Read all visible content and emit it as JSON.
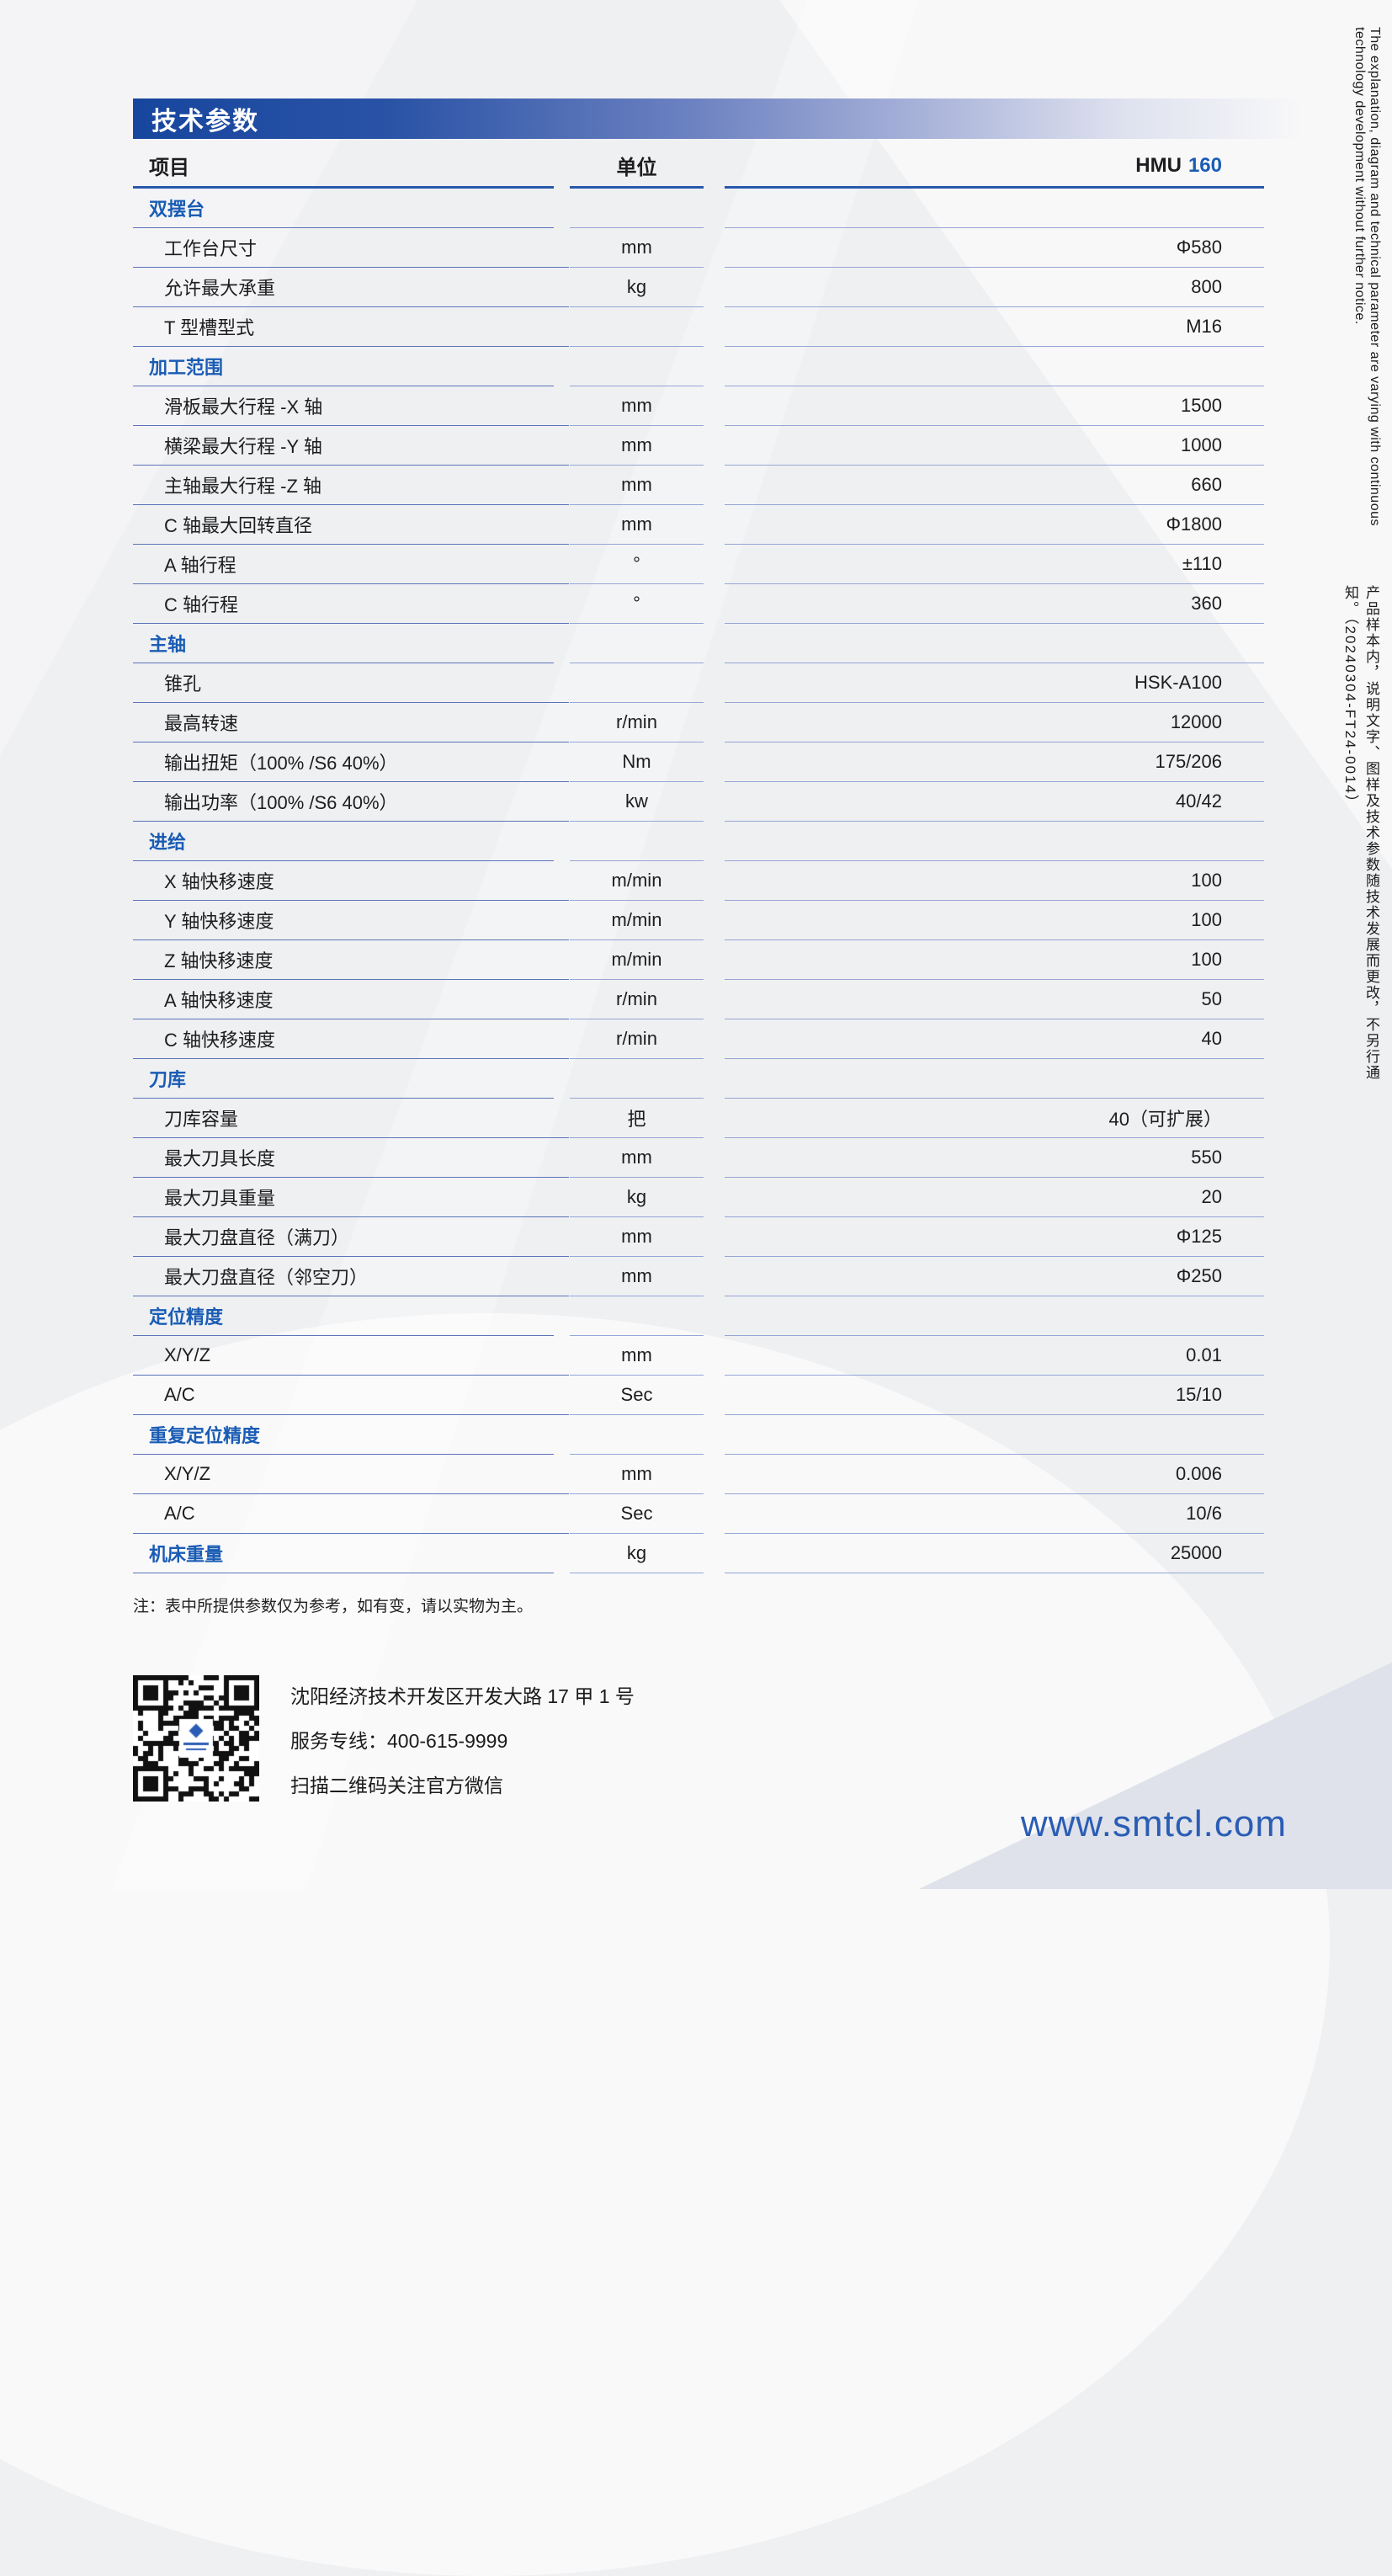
{
  "page": {
    "banner_title": "技术参数",
    "note": "注：表中所提供参数仅为参考，如有变，请以实物为主。",
    "website": "www.smtcl.com",
    "side_text_en": "The explanation, diagram and technical parameter are varying with continuous technology development without further notice.",
    "side_text_zh": "产品样本内，说明文字、图样及技术参数随技术发展而更改，不另行通知。（20240304-FT24-0014）"
  },
  "colors": {
    "banner_blue": "#17469e",
    "section_blue": "#1a5cb4",
    "line_dark": "#2759ab",
    "line_item": "#5a74b8",
    "line_light": "#95a5d6",
    "website_blue": "#2a5db5"
  },
  "table": {
    "header": {
      "item": "项目",
      "unit": "单位",
      "model_prefix": "HMU",
      "model_number": "160"
    },
    "rows": [
      {
        "type": "section",
        "item": "双摆台",
        "unit": "",
        "value": ""
      },
      {
        "type": "item",
        "item": "工作台尺寸",
        "unit": "mm",
        "value": "Φ580"
      },
      {
        "type": "item",
        "item": "允许最大承重",
        "unit": "kg",
        "value": "800"
      },
      {
        "type": "item",
        "item": "T 型槽型式",
        "unit": "",
        "value": "M16"
      },
      {
        "type": "section",
        "item": "加工范围",
        "unit": "",
        "value": ""
      },
      {
        "type": "item",
        "item": "滑板最大行程 -X 轴",
        "unit": "mm",
        "value": "1500"
      },
      {
        "type": "item",
        "item": "横梁最大行程 -Y 轴",
        "unit": "mm",
        "value": "1000"
      },
      {
        "type": "item",
        "item": "主轴最大行程 -Z 轴",
        "unit": "mm",
        "value": "660"
      },
      {
        "type": "item",
        "item": "C 轴最大回转直径",
        "unit": "mm",
        "value": "Φ1800"
      },
      {
        "type": "item",
        "item": "A 轴行程",
        "unit": "°",
        "value": "±110"
      },
      {
        "type": "item",
        "item": "C 轴行程",
        "unit": "°",
        "value": "360"
      },
      {
        "type": "section",
        "item": "主轴",
        "unit": "",
        "value": ""
      },
      {
        "type": "item",
        "item": "锥孔",
        "unit": "",
        "value": "HSK-A100"
      },
      {
        "type": "item",
        "item": "最高转速",
        "unit": "r/min",
        "value": "12000"
      },
      {
        "type": "item",
        "item": "输出扭矩（100% /S6 40%）",
        "unit": "Nm",
        "value": "175/206"
      },
      {
        "type": "item",
        "item": "输出功率（100% /S6 40%）",
        "unit": "kw",
        "value": "40/42"
      },
      {
        "type": "section",
        "item": "进给",
        "unit": "",
        "value": ""
      },
      {
        "type": "item",
        "item": "X 轴快移速度",
        "unit": "m/min",
        "value": "100"
      },
      {
        "type": "item",
        "item": "Y 轴快移速度",
        "unit": "m/min",
        "value": "100"
      },
      {
        "type": "item",
        "item": "Z 轴快移速度",
        "unit": "m/min",
        "value": "100"
      },
      {
        "type": "item",
        "item": "A 轴快移速度",
        "unit": "r/min",
        "value": "50"
      },
      {
        "type": "item",
        "item": "C 轴快移速度",
        "unit": "r/min",
        "value": "40"
      },
      {
        "type": "section",
        "item": "刀库",
        "unit": "",
        "value": ""
      },
      {
        "type": "item",
        "item": "刀库容量",
        "unit": "把",
        "value": "40（可扩展）"
      },
      {
        "type": "item",
        "item": "最大刀具长度",
        "unit": "mm",
        "value": "550"
      },
      {
        "type": "item",
        "item": "最大刀具重量",
        "unit": "kg",
        "value": "20"
      },
      {
        "type": "item",
        "item": "最大刀盘直径（满刀）",
        "unit": "mm",
        "value": "Φ125"
      },
      {
        "type": "item",
        "item": "最大刀盘直径（邻空刀）",
        "unit": "mm",
        "value": "Φ250"
      },
      {
        "type": "section",
        "item": "定位精度",
        "unit": "",
        "value": ""
      },
      {
        "type": "item",
        "item": "X/Y/Z",
        "unit": "mm",
        "value": "0.01"
      },
      {
        "type": "item",
        "item": "A/C",
        "unit": "Sec",
        "value": "15/10"
      },
      {
        "type": "section",
        "item": "重复定位精度",
        "unit": "",
        "value": ""
      },
      {
        "type": "item",
        "item": "X/Y/Z",
        "unit": "mm",
        "value": "0.006"
      },
      {
        "type": "item",
        "item": "A/C",
        "unit": "Sec",
        "value": "10/6"
      },
      {
        "type": "section",
        "item": "机床重量",
        "unit": "kg",
        "value": "25000"
      }
    ]
  },
  "footer": {
    "address": "沈阳经济技术开发区开发大路 17 甲 1 号",
    "hotline": "服务专线：400-615-9999",
    "wechat": "扫描二维码关注官方微信"
  }
}
